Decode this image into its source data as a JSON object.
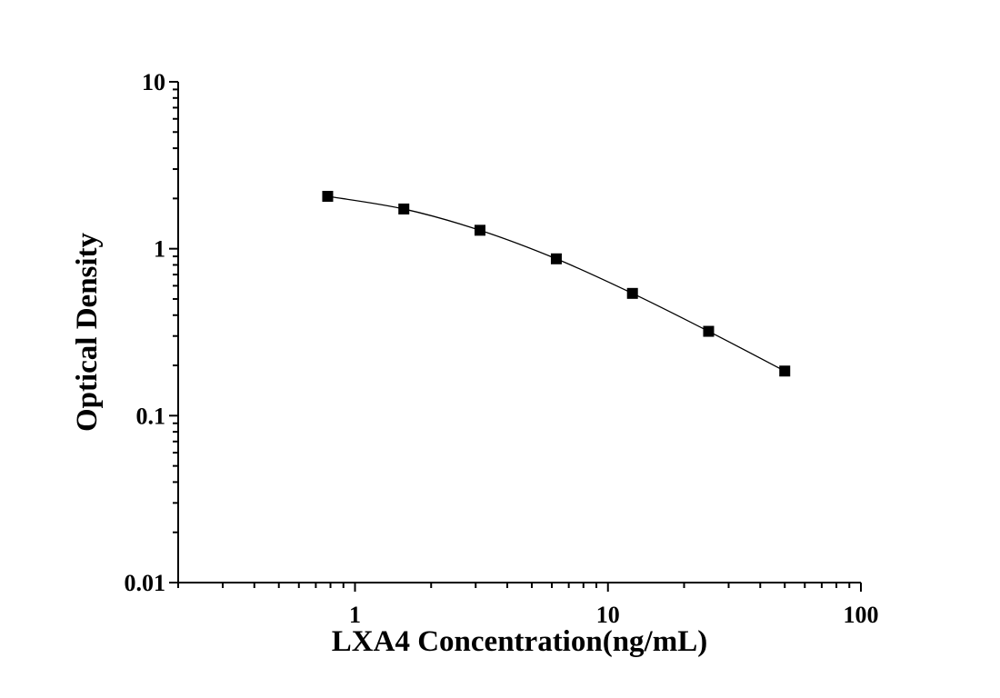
{
  "chart_data": {
    "type": "scatter",
    "xlabel": "LXA4 Concentration(ng/mL)",
    "ylabel": "Optical Density",
    "x_scale": "log",
    "y_scale": "log",
    "xlim": [
      0.2,
      100
    ],
    "ylim": [
      0.01,
      10
    ],
    "x_ticks": [
      {
        "value": 1,
        "label": "1"
      },
      {
        "value": 10,
        "label": "10"
      },
      {
        "value": 100,
        "label": "100"
      }
    ],
    "y_ticks": [
      {
        "value": 0.01,
        "label": "0.01"
      },
      {
        "value": 0.1,
        "label": "0.1"
      },
      {
        "value": 1,
        "label": "1"
      },
      {
        "value": 10,
        "label": "10"
      }
    ],
    "grid": false,
    "series": [
      {
        "marker": "square",
        "line": "fitted-curve",
        "color": "#000000",
        "points": [
          {
            "x": 0.78,
            "y": 2.06
          },
          {
            "x": 1.56,
            "y": 1.73
          },
          {
            "x": 3.12,
            "y": 1.29
          },
          {
            "x": 6.25,
            "y": 0.87
          },
          {
            "x": 12.5,
            "y": 0.54
          },
          {
            "x": 25,
            "y": 0.32
          },
          {
            "x": 50,
            "y": 0.185
          }
        ]
      }
    ]
  }
}
